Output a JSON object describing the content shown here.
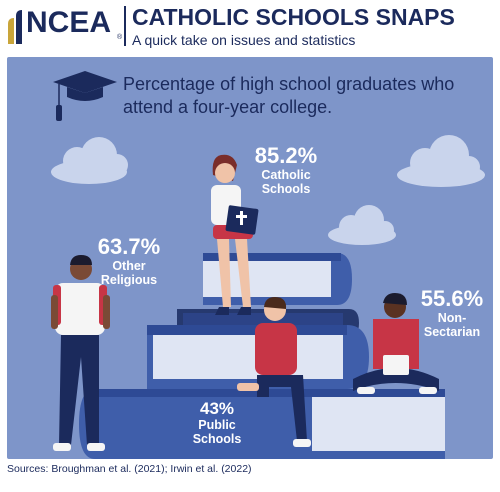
{
  "header": {
    "logo_text": "NCEA",
    "logo_registered": "®",
    "title": "CATHOLIC SCHOOLS SNAPS",
    "subtitle": "A quick take on issues and statistics"
  },
  "question": "Percentage of high school graduates who attend a four-year college.",
  "sources": "Sources: Broughman et al. (2021); Irwin et al. (2022)",
  "chart_data": {
    "type": "table",
    "title": "Percentage of high school graduates who attend a four-year college.",
    "categories": [
      "Catholic Schools",
      "Other Religious",
      "Non-Sectarian",
      "Public Schools"
    ],
    "values": [
      85.2,
      63.7,
      55.6,
      43
    ],
    "labels": [
      {
        "pct": "85.2%",
        "name_line1": "Catholic",
        "name_line2": "Schools"
      },
      {
        "pct": "63.7%",
        "name_line1": "Other",
        "name_line2": "Religious"
      },
      {
        "pct": "55.6%",
        "name_line1": "Non-",
        "name_line2": "Sectarian"
      },
      {
        "pct": "43%",
        "name_line1": "Public",
        "name_line2": "Schools"
      }
    ]
  },
  "colors": {
    "navy": "#1b2a5c",
    "panel": "#7e95c9",
    "book_blue": "#3f5eaa",
    "book_dark": "#26396f",
    "red_shirt": "#c73546",
    "cloud": "#c9d4ec",
    "gold": "#c9a53a"
  },
  "icons": [
    "graduation-cap-icon",
    "cross-icon",
    "cloud-icon",
    "logo-mark-icon"
  ]
}
